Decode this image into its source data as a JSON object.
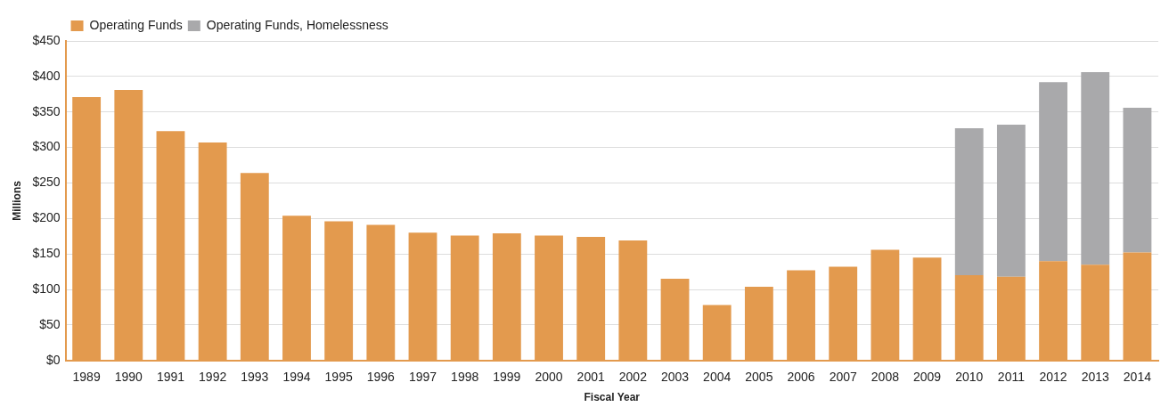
{
  "chart_data": {
    "type": "bar",
    "xlabel": "Fiscal Year",
    "ylabel": "Millions",
    "categories": [
      "1989",
      "1990",
      "1991",
      "1992",
      "1993",
      "1994",
      "1995",
      "1996",
      "1997",
      "1998",
      "1999",
      "2000",
      "2001",
      "2002",
      "2003",
      "2004",
      "2005",
      "2006",
      "2007",
      "2008",
      "2009",
      "2010",
      "2011",
      "2012",
      "2013",
      "2014"
    ],
    "series": [
      {
        "name": "Operating Funds",
        "color": "#e39a4e",
        "values": [
          371,
          381,
          323,
          307,
          264,
          204,
          196,
          191,
          180,
          176,
          179,
          176,
          174,
          169,
          115,
          78,
          104,
          127,
          132,
          156,
          145,
          120,
          118,
          140,
          135,
          152
        ]
      },
      {
        "name": "Operating Funds, Homelessness",
        "color": "#a9a9ab",
        "values": [
          null,
          null,
          null,
          null,
          null,
          null,
          null,
          null,
          null,
          null,
          null,
          null,
          null,
          null,
          null,
          null,
          null,
          null,
          null,
          null,
          null,
          207,
          214,
          252,
          271,
          204
        ]
      }
    ],
    "stacked": true,
    "ylim": [
      0,
      450
    ],
    "yticks": [
      {
        "value": 0,
        "label": "$0"
      },
      {
        "value": 50,
        "label": "$50"
      },
      {
        "value": 100,
        "label": "$100"
      },
      {
        "value": 150,
        "label": "$150"
      },
      {
        "value": 200,
        "label": "$200"
      },
      {
        "value": 250,
        "label": "$250"
      },
      {
        "value": 300,
        "label": "$300"
      },
      {
        "value": 350,
        "label": "$350"
      },
      {
        "value": 400,
        "label": "$400"
      },
      {
        "value": 450,
        "label": "$450"
      }
    ],
    "grid": "y",
    "legend": "top left"
  }
}
